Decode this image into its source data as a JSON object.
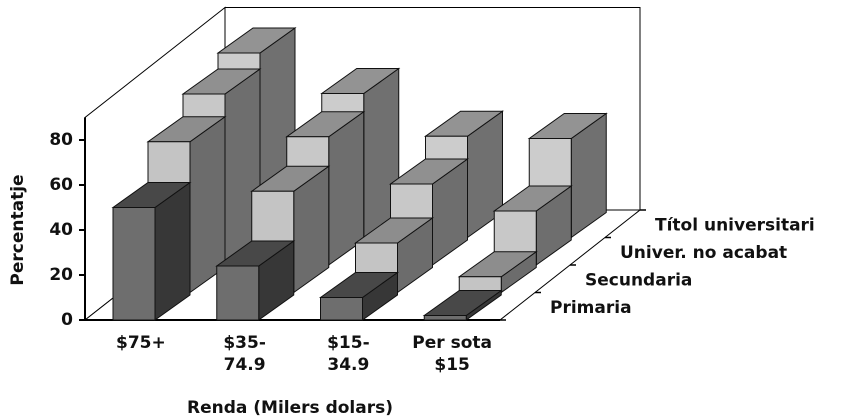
{
  "chart_data": {
    "type": "bar3d",
    "y_label": "Percentatje",
    "x_label": "Renda (Milers dolars)",
    "categories": [
      "$75+",
      "$35-74.9",
      "$15-34.9",
      "Per sota $15"
    ],
    "series": [
      {
        "name": "Primaria",
        "color": "#6e6e6e",
        "values": [
          50,
          24,
          10,
          2
        ]
      },
      {
        "name": "Secundaria",
        "color": "#c4c4c4",
        "values": [
          67,
          45,
          22,
          7
        ]
      },
      {
        "name": "Univer. no acabat",
        "color": "#c8c8c8",
        "values": [
          76,
          57,
          36,
          24
        ]
      },
      {
        "name": "Títol universitari",
        "color": "#cccccc",
        "values": [
          82,
          64,
          45,
          44
        ]
      }
    ],
    "ylim": [
      0,
      90
    ],
    "yticks": [
      0,
      20,
      40,
      60,
      80
    ]
  }
}
